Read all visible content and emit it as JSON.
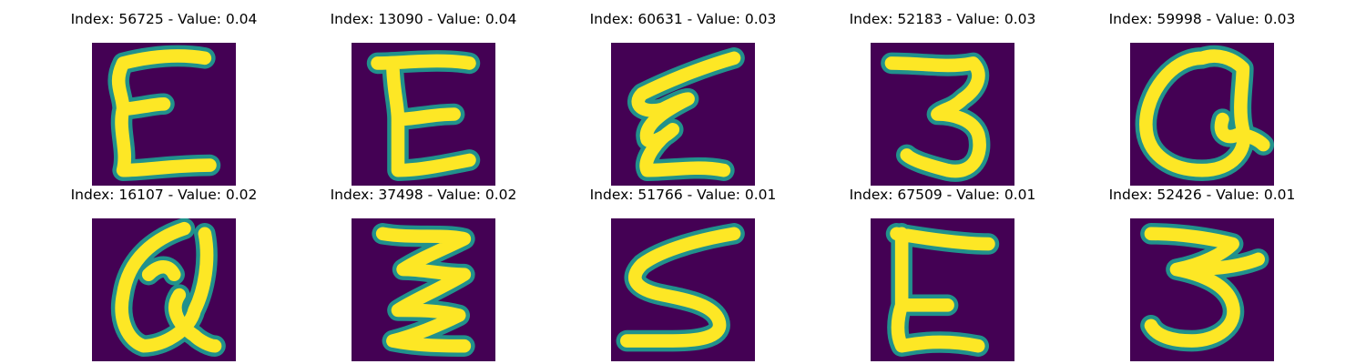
{
  "colors": {
    "background": "#440154",
    "stroke_core": "#fde725",
    "stroke_edge": "#21918c"
  },
  "panels": [
    {
      "title": "Index: 56725 - Value: 0.04",
      "glyph": "E"
    },
    {
      "title": "Index: 13090 - Value: 0.04",
      "glyph": "E"
    },
    {
      "title": "Index: 60631 - Value: 0.03",
      "glyph": "E"
    },
    {
      "title": "Index: 52183 - Value: 0.03",
      "glyph": "3"
    },
    {
      "title": "Index: 59998 - Value: 0.03",
      "glyph": "Q"
    },
    {
      "title": "Index: 16107 - Value: 0.02",
      "glyph": "Q"
    },
    {
      "title": "Index: 37498 - Value: 0.02",
      "glyph": "Z"
    },
    {
      "title": "Index: 51766 - Value: 0.01",
      "glyph": "S"
    },
    {
      "title": "Index: 67509 - Value: 0.01",
      "glyph": "E"
    },
    {
      "title": "Index: 52426 - Value: 0.01",
      "glyph": "3"
    }
  ]
}
